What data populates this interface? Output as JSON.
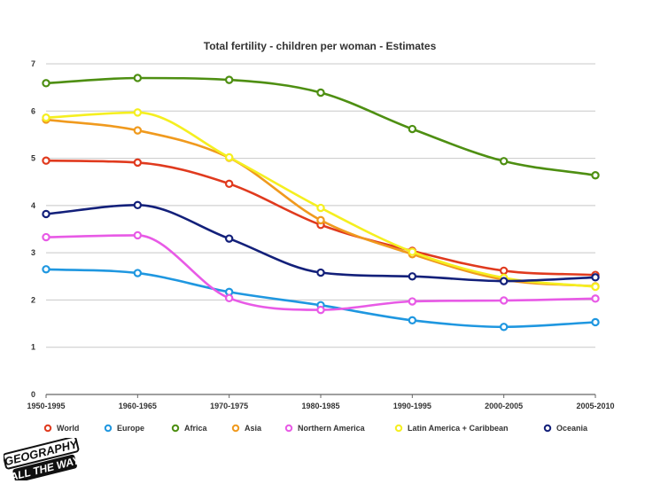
{
  "chart_data": {
    "type": "line",
    "title": "Total fertility - children per woman - Estimates",
    "xlabel": "",
    "ylabel": "",
    "categories": [
      "1950-1995",
      "1960-1965",
      "1970-1975",
      "1980-1985",
      "1990-1995",
      "2000-2005",
      "2005-2010"
    ],
    "ylim": [
      0,
      7
    ],
    "yticks": [
      0,
      1,
      2,
      3,
      4,
      5,
      6,
      7
    ],
    "grid": true,
    "legend_position": "bottom",
    "series": [
      {
        "name": "World",
        "color": "#e03a1e",
        "values": [
          4.95,
          4.91,
          4.46,
          3.59,
          3.04,
          2.62,
          2.53
        ]
      },
      {
        "name": "Europe",
        "color": "#1f97e0",
        "values": [
          2.65,
          2.57,
          2.17,
          1.89,
          1.57,
          1.43,
          1.53
        ]
      },
      {
        "name": "Africa",
        "color": "#4e8f12",
        "values": [
          6.59,
          6.7,
          6.66,
          6.39,
          5.62,
          4.94,
          4.64
        ]
      },
      {
        "name": "Asia",
        "color": "#f09a1e",
        "values": [
          5.82,
          5.59,
          5.01,
          3.69,
          2.97,
          2.43,
          2.29
        ]
      },
      {
        "name": "Northern America",
        "color": "#e85ae6",
        "values": [
          3.33,
          3.37,
          2.04,
          1.79,
          1.97,
          1.99,
          2.03
        ]
      },
      {
        "name": "Latin America + Caribbean",
        "color": "#f5ef20",
        "values": [
          5.86,
          5.97,
          5.02,
          3.95,
          3.02,
          2.47,
          2.28
        ]
      },
      {
        "name": "Oceania",
        "color": "#13207a",
        "values": [
          3.82,
          4.01,
          3.3,
          2.58,
          2.5,
          2.4,
          2.48
        ]
      }
    ]
  },
  "logo": {
    "line1": "GEOGRAPHY",
    "line2": "ALL THE WAY"
  }
}
